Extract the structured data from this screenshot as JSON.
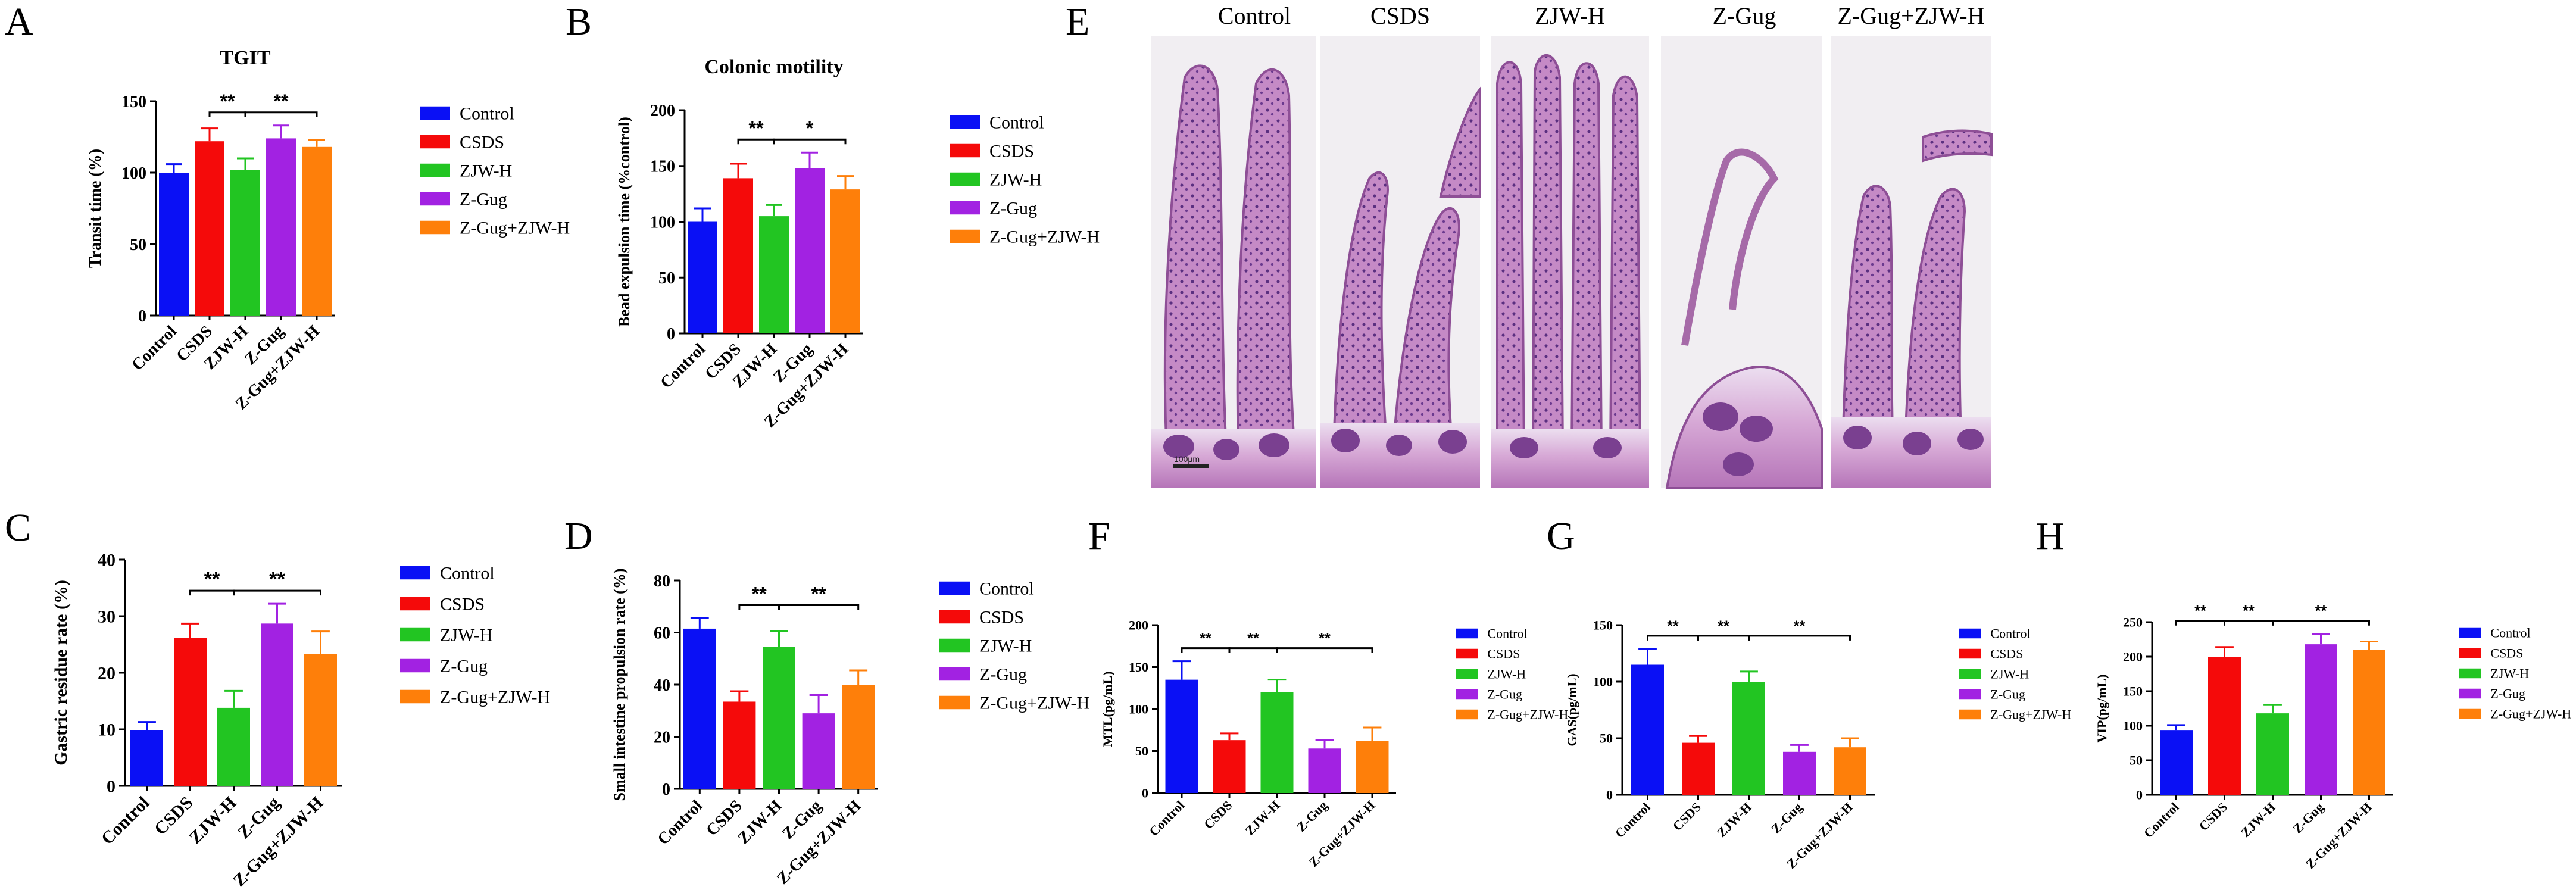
{
  "colors": {
    "Control": "#0a10f5",
    "CSDS": "#f50a0a",
    "ZJW-H": "#22c522",
    "Z-Gug": "#a222e2",
    "Z-Gug+ZJW-H": "#fe7f0a"
  },
  "panel_letters": [
    "A",
    "B",
    "C",
    "D",
    "E",
    "F",
    "G",
    "H"
  ],
  "micrograph": {
    "letter": "E",
    "labels": [
      "Control",
      "CSDS",
      "ZJW-H",
      "Z-Gug",
      "Z-Gug+ZJW-H"
    ],
    "scale_bar": "100μm"
  },
  "chart_data": [
    {
      "panel": "A",
      "type": "bar",
      "title": "TGIT",
      "ylabel": "Transit time (%)",
      "xlabel": "",
      "categories": [
        "Control",
        "CSDS",
        "ZJW-H",
        "Z-Gug",
        "Z-Gug+ZJW-H"
      ],
      "values": [
        100,
        122,
        102,
        124,
        118
      ],
      "errors": [
        6,
        9,
        8,
        9,
        5
      ],
      "ylim": [
        0,
        150
      ],
      "yticks": [
        0,
        50,
        100,
        150
      ],
      "legend": [
        "Control",
        "CSDS",
        "ZJW-H",
        "Z-Gug",
        "Z-Gug+ZJW-H"
      ],
      "legend_position": "right",
      "significance": [
        {
          "from": 1,
          "to": 2,
          "label": "**"
        },
        {
          "from": 2,
          "to": 4,
          "label": "**"
        }
      ]
    },
    {
      "panel": "B",
      "type": "bar",
      "title": "Colonic motility",
      "ylabel": "Bead expulsion time (%control)",
      "xlabel": "",
      "categories": [
        "Control",
        "CSDS",
        "ZJW-H",
        "Z-Gug",
        "Z-Gug+ZJW-H"
      ],
      "values": [
        100,
        139,
        105,
        148,
        129
      ],
      "errors": [
        12,
        13,
        10,
        14,
        12
      ],
      "ylim": [
        0,
        200
      ],
      "yticks": [
        0,
        50,
        100,
        150,
        200
      ],
      "legend": [
        "Control",
        "CSDS",
        "ZJW-H",
        "Z-Gug",
        "Z-Gug+ZJW-H"
      ],
      "legend_position": "right",
      "significance": [
        {
          "from": 1,
          "to": 2,
          "label": "**"
        },
        {
          "from": 2,
          "to": 4,
          "label": "*"
        }
      ]
    },
    {
      "panel": "C",
      "type": "bar",
      "title": "",
      "ylabel": "Gastric residue rate (%)",
      "xlabel": "",
      "categories": [
        "Control",
        "CSDS",
        "ZJW-H",
        "Z-Gug",
        "Z-Gug+ZJW-H"
      ],
      "values": [
        9.8,
        26.2,
        13.8,
        28.7,
        23.3
      ],
      "errors": [
        1.5,
        2.5,
        3.0,
        3.5,
        4.0
      ],
      "ylim": [
        0,
        40
      ],
      "yticks": [
        0,
        10,
        20,
        30,
        40
      ],
      "legend": [
        "Control",
        "CSDS",
        "ZJW-H",
        "Z-Gug",
        "Z-Gug+ZJW-H"
      ],
      "legend_position": "right",
      "significance": [
        {
          "from": 1,
          "to": 2,
          "label": "**"
        },
        {
          "from": 2,
          "to": 4,
          "label": "**"
        }
      ]
    },
    {
      "panel": "D",
      "type": "bar",
      "title": "",
      "ylabel": "Small intestine propulsion rate (%)",
      "xlabel": "",
      "categories": [
        "Control",
        "CSDS",
        "ZJW-H",
        "Z-Gug",
        "Z-Gug+ZJW-H"
      ],
      "values": [
        61.5,
        33.5,
        54.5,
        29,
        40
      ],
      "errors": [
        4,
        4,
        6,
        7,
        5.5
      ],
      "ylim": [
        0,
        80
      ],
      "yticks": [
        0,
        20,
        40,
        60,
        80
      ],
      "legend": [
        "Control",
        "CSDS",
        "ZJW-H",
        "Z-Gug",
        "Z-Gug+ZJW-H"
      ],
      "legend_position": "right",
      "significance": [
        {
          "from": 1,
          "to": 2,
          "label": "**"
        },
        {
          "from": 2,
          "to": 4,
          "label": "**"
        }
      ]
    },
    {
      "panel": "F",
      "type": "bar",
      "title": "",
      "ylabel": "MTL(pg/mL)",
      "xlabel": "",
      "categories": [
        "Control",
        "CSDS",
        "ZJW-H",
        "Z-Gug",
        "Z-Gug+ZJW-H"
      ],
      "values": [
        135,
        63,
        120,
        53,
        62
      ],
      "errors": [
        22,
        8,
        15,
        10,
        16
      ],
      "ylim": [
        0,
        200
      ],
      "yticks": [
        0,
        50,
        100,
        150,
        200
      ],
      "legend": [
        "Control",
        "CSDS",
        "ZJW-H",
        "Z-Gug",
        "Z-Gug+ZJW-H"
      ],
      "legend_position": "right",
      "significance": [
        {
          "from": 0,
          "to": 1,
          "label": "**"
        },
        {
          "from": 1,
          "to": 2,
          "label": "**"
        },
        {
          "from": 2,
          "to": 4,
          "label": "**"
        }
      ]
    },
    {
      "panel": "G",
      "type": "bar",
      "title": "",
      "ylabel": "GAS(pg/mL)",
      "xlabel": "",
      "categories": [
        "Control",
        "CSDS",
        "ZJW-H",
        "Z-Gug",
        "Z-Gug+ZJW-H"
      ],
      "values": [
        115,
        46,
        100,
        38,
        42
      ],
      "errors": [
        14,
        6,
        9,
        6,
        8
      ],
      "ylim": [
        0,
        150
      ],
      "yticks": [
        0,
        50,
        100,
        150
      ],
      "legend": [
        "Control",
        "CSDS",
        "ZJW-H",
        "Z-Gug",
        "Z-Gug+ZJW-H"
      ],
      "legend_position": "right",
      "significance": [
        {
          "from": 0,
          "to": 1,
          "label": "**"
        },
        {
          "from": 1,
          "to": 2,
          "label": "**"
        },
        {
          "from": 2,
          "to": 4,
          "label": "**"
        }
      ]
    },
    {
      "panel": "H",
      "type": "bar",
      "title": "",
      "ylabel": "VIP(pg/mL)",
      "xlabel": "",
      "categories": [
        "Control",
        "CSDS",
        "ZJW-H",
        "Z-Gug",
        "Z-Gug+ZJW-H"
      ],
      "values": [
        93,
        200,
        118,
        218,
        210
      ],
      "errors": [
        8,
        14,
        12,
        15,
        12
      ],
      "ylim": [
        0,
        250
      ],
      "yticks": [
        0,
        50,
        100,
        150,
        200,
        250
      ],
      "legend": [
        "Control",
        "CSDS",
        "ZJW-H",
        "Z-Gug",
        "Z-Gug+ZJW-H"
      ],
      "legend_position": "right",
      "significance": [
        {
          "from": 0,
          "to": 1,
          "label": "**"
        },
        {
          "from": 1,
          "to": 2,
          "label": "**"
        },
        {
          "from": 2,
          "to": 4,
          "label": "**"
        }
      ]
    }
  ]
}
